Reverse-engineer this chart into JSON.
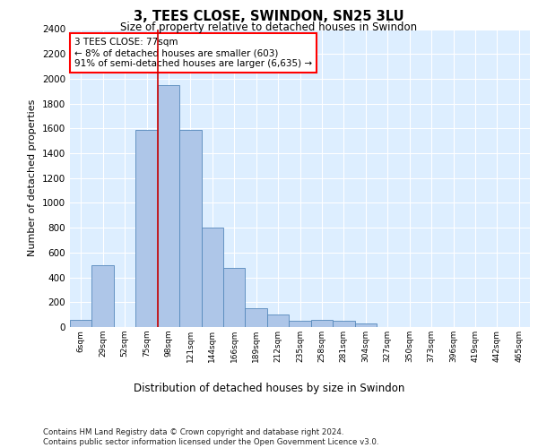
{
  "title": "3, TEES CLOSE, SWINDON, SN25 3LU",
  "subtitle": "Size of property relative to detached houses in Swindon",
  "xlabel": "Distribution of detached houses by size in Swindon",
  "ylabel": "Number of detached properties",
  "categories": [
    "6sqm",
    "29sqm",
    "52sqm",
    "75sqm",
    "98sqm",
    "121sqm",
    "144sqm",
    "166sqm",
    "189sqm",
    "212sqm",
    "235sqm",
    "258sqm",
    "281sqm",
    "304sqm",
    "327sqm",
    "350sqm",
    "373sqm",
    "396sqm",
    "419sqm",
    "442sqm",
    "465sqm"
  ],
  "values": [
    60,
    500,
    0,
    1590,
    1950,
    1590,
    800,
    480,
    155,
    100,
    50,
    55,
    50,
    30,
    0,
    0,
    0,
    0,
    0,
    0,
    0
  ],
  "bar_color": "#aec6e8",
  "bar_edge_color": "#5588bb",
  "vline_x": 3.5,
  "vline_color": "#cc0000",
  "annotation_text": "3 TEES CLOSE: 77sqm\n← 8% of detached houses are smaller (603)\n91% of semi-detached houses are larger (6,635) →",
  "annotation_box_facecolor": "white",
  "annotation_box_edgecolor": "red",
  "ylim": [
    0,
    2400
  ],
  "yticks": [
    0,
    200,
    400,
    600,
    800,
    1000,
    1200,
    1400,
    1600,
    1800,
    2000,
    2200,
    2400
  ],
  "bg_color": "#ddeeff",
  "grid_color": "white",
  "footer": "Contains HM Land Registry data © Crown copyright and database right 2024.\nContains public sector information licensed under the Open Government Licence v3.0."
}
